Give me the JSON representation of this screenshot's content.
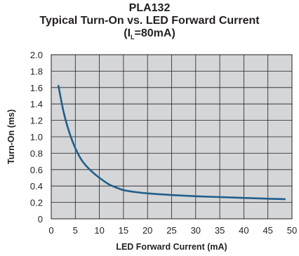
{
  "chart_data": {
    "type": "line",
    "title_line1": "PLA132",
    "title_line2": "Typical Turn-On vs. LED Forward Current",
    "title_line3_prefix": "(I",
    "title_line3_sub": "L",
    "title_line3_suffix": "=80mA)",
    "xlabel": "LED Forward Current (mA)",
    "ylabel": "Turn-On (ms)",
    "xlim": [
      0,
      50
    ],
    "ylim": [
      0,
      2.0
    ],
    "x_ticks": [
      "0",
      "5",
      "10",
      "15",
      "20",
      "25",
      "30",
      "35",
      "40",
      "45",
      "50"
    ],
    "y_ticks": [
      "0",
      "0.2",
      "0.4",
      "0.6",
      "0.8",
      "1.0",
      "1.2",
      "1.4",
      "1.6",
      "1.8",
      "2.0"
    ],
    "grid": true,
    "line_color": "#1f5f8b",
    "series": [
      {
        "x": [
          1.5,
          2.5,
          3.5,
          4.5,
          5.5,
          6.5,
          8,
          10,
          12,
          14,
          15,
          17,
          20,
          25,
          30,
          35,
          40,
          45,
          48.5
        ],
        "y": [
          1.62,
          1.32,
          1.1,
          0.93,
          0.8,
          0.7,
          0.6,
          0.5,
          0.42,
          0.37,
          0.35,
          0.33,
          0.31,
          0.29,
          0.275,
          0.265,
          0.255,
          0.245,
          0.24
        ]
      }
    ]
  }
}
